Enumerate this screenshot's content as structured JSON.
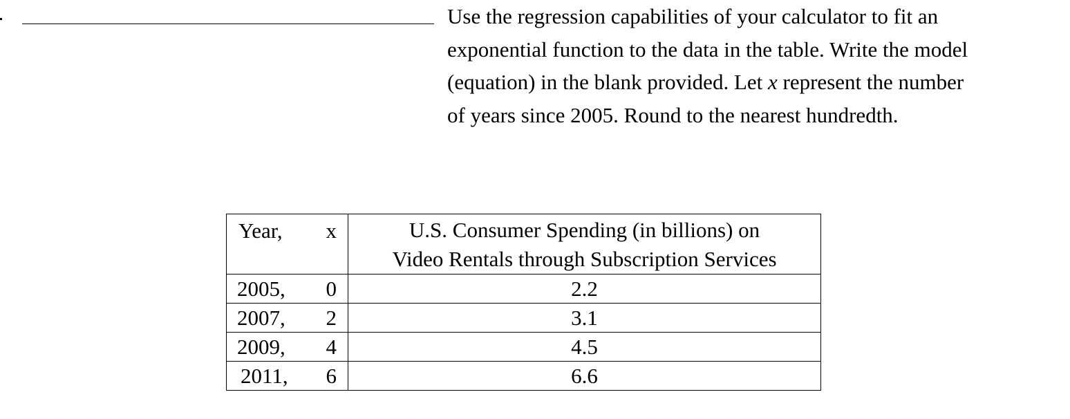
{
  "problem": {
    "prompt_lines": [
      "Use the regression capabilities of your calculator to fit an",
      "exponential function to the data in the table.  Write the model",
      "(equation) in the blank provided.   Let ",
      "of years since 2005.  Round to the nearest hundredth."
    ],
    "variable": "x",
    "line3_tail": " represent the number"
  },
  "table": {
    "header": {
      "year_label": "Year,",
      "x_label": "x",
      "spending_label_line1": "U.S. Consumer Spending (in billions) on",
      "spending_label_line2": "Video Rentals through Subscription Services"
    },
    "rows": [
      {
        "year": "2005,",
        "x": "0",
        "spending": "2.2"
      },
      {
        "year": "2007,",
        "x": "2",
        "spending": "3.1"
      },
      {
        "year": "2009,",
        "x": "4",
        "spending": "4.5"
      },
      {
        "year": "2011,",
        "x": "6",
        "spending": "6.6"
      }
    ]
  }
}
